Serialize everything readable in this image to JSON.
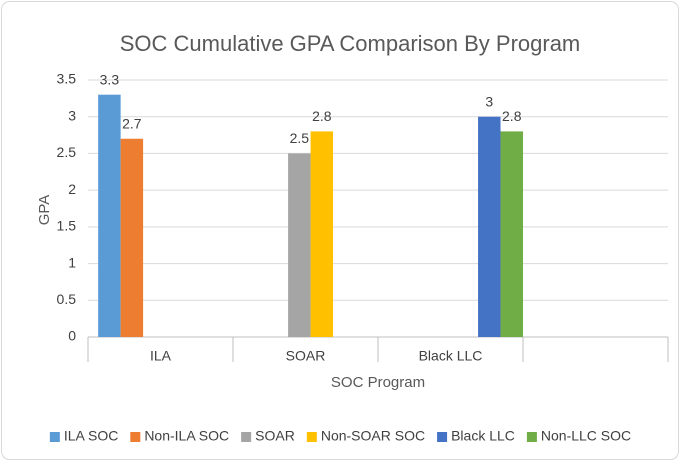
{
  "chart_data": {
    "type": "bar",
    "title": "SOC Cumulative GPA Comparison By Program",
    "x_label": "SOC Program",
    "y_label": "GPA",
    "categories": [
      "ILA",
      "SOAR",
      "Black LLC",
      null
    ],
    "series": [
      {
        "name": "ILA SOC",
        "color": "#5b9bd5",
        "values": [
          3.3,
          null,
          null,
          null
        ]
      },
      {
        "name": "Non-ILA SOC",
        "color": "#ed7d31",
        "values": [
          2.7,
          null,
          null,
          null
        ]
      },
      {
        "name": "SOAR",
        "color": "#a5a5a5",
        "values": [
          null,
          2.5,
          null,
          null
        ]
      },
      {
        "name": "Non-SOAR SOC",
        "color": "#ffc000",
        "values": [
          null,
          2.8,
          null,
          null
        ]
      },
      {
        "name": "Black LLC",
        "color": "#4472c4",
        "values": [
          null,
          null,
          3,
          null
        ]
      },
      {
        "name": "Non-LLC SOC",
        "color": "#70ad47",
        "values": [
          null,
          null,
          2.8,
          null
        ]
      }
    ],
    "ylim": [
      0,
      3.5
    ],
    "yticks": [
      0,
      0.5,
      1,
      1.5,
      2,
      2.5,
      3,
      3.5
    ],
    "grid": true,
    "data_labels": true,
    "legend": "bottom"
  }
}
